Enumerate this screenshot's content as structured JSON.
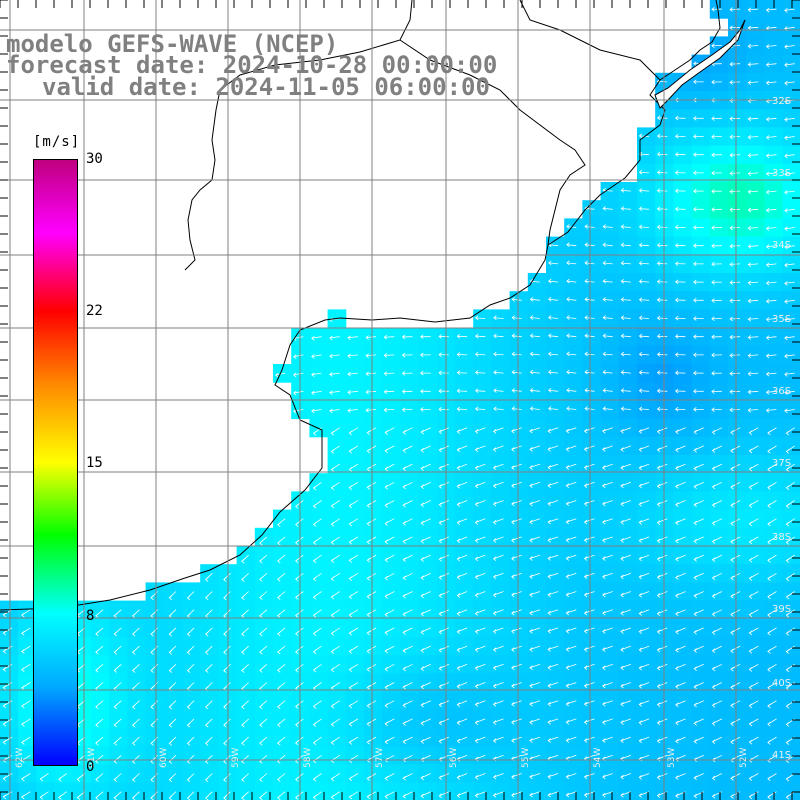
{
  "title": {
    "line1": "modelo GEFS-WAVE (NCEP)",
    "line2": "forecast date: 2024-10-28 00:00:00",
    "line3": "valid date: 2024-11-05 06:00:00"
  },
  "colorbar": {
    "unit": "[m/s]",
    "min": 0,
    "max": 30,
    "ticks": [
      "30",
      "22",
      "15",
      "8",
      "0"
    ],
    "colors": [
      "#0000ff",
      "#00aaff",
      "#00ffff",
      "#00ff00",
      "#ffff00",
      "#ff8800",
      "#ff0000",
      "#ff00ff",
      "#c0007f"
    ]
  },
  "map": {
    "lat_labels": [
      "32S",
      "33S",
      "34S",
      "35S",
      "36S",
      "37S",
      "38S",
      "39S",
      "40S",
      "41S"
    ],
    "lon_labels": [
      "62W",
      "61W",
      "60W",
      "59W",
      "58W",
      "57W",
      "56W",
      "55W",
      "54W",
      "53W",
      "52W"
    ],
    "land_color": "#ffffff",
    "coast_color": "#000000",
    "grid_color": "#808080",
    "arrow_color": "#ffffff"
  }
}
